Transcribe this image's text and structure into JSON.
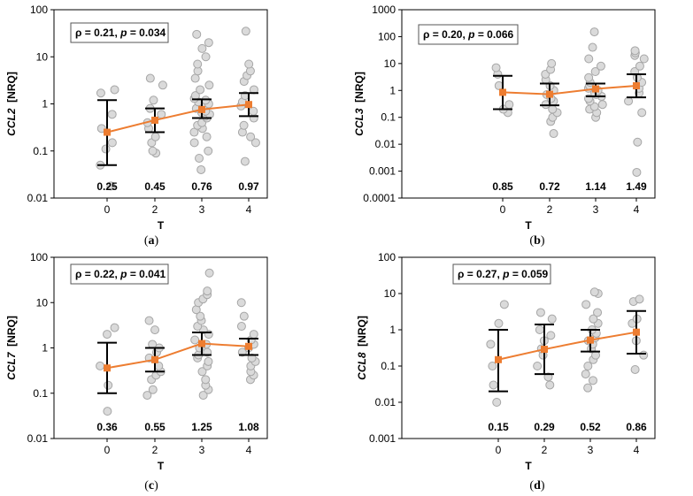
{
  "chart_data": [
    {
      "type": "scatter",
      "panel_label": "a",
      "ylabel_gene": "CCL2",
      "ylabel_unit": "[NRQ]",
      "xlabel": "T",
      "scale": "log",
      "ylim": [
        0.01,
        100
      ],
      "ytick_labels": [
        "0.01",
        "0.1",
        "1",
        "10",
        "100"
      ],
      "categories": [
        "0",
        "2",
        "3",
        "4"
      ],
      "stat_rho": "ρ = 0.21,",
      "stat_p": "p",
      "stat_pval": "= 0.034",
      "medians": [
        0.25,
        0.45,
        0.76,
        0.97
      ],
      "median_labels": [
        "0.25",
        "0.45",
        "0.76",
        "0.97"
      ],
      "error_low": [
        0.05,
        0.25,
        0.5,
        0.55
      ],
      "error_high": [
        1.2,
        0.8,
        1.25,
        1.7
      ],
      "points": [
        [
          0.018,
          0.05,
          0.11,
          0.15,
          0.3,
          0.6,
          1.7,
          2.0
        ],
        [
          0.09,
          0.1,
          0.15,
          0.2,
          0.3,
          0.4,
          0.6,
          0.8,
          1.2,
          2.5,
          3.5
        ],
        [
          0.04,
          0.07,
          0.1,
          0.15,
          0.2,
          0.25,
          0.3,
          0.35,
          0.4,
          0.5,
          0.55,
          0.6,
          0.65,
          0.7,
          0.8,
          0.9,
          1.0,
          1.1,
          1.2,
          1.3,
          1.5,
          2.0,
          2.5,
          3.5,
          5.0,
          7.0,
          10.0,
          15.0,
          20.0,
          30.0
        ],
        [
          0.06,
          0.15,
          0.2,
          0.25,
          0.35,
          0.5,
          0.7,
          0.9,
          1.1,
          1.5,
          2.0,
          3.0,
          4.0,
          5.0,
          7.0,
          35.0
        ]
      ]
    },
    {
      "type": "scatter",
      "panel_label": "b",
      "ylabel_gene": "CCL3",
      "ylabel_unit": "[NRQ]",
      "xlabel": "T",
      "scale": "log",
      "ylim": [
        0.0001,
        1000
      ],
      "ytick_labels": [
        "0.0001",
        "0.001",
        "0.01",
        "0.1",
        "1",
        "10",
        "100",
        "1000"
      ],
      "categories": [
        "0",
        "2",
        "3",
        "4"
      ],
      "stat_rho": "ρ = 0.20,",
      "stat_p": "p",
      "stat_pval": "= 0.066",
      "medians": [
        0.85,
        0.72,
        1.14,
        1.49
      ],
      "median_labels": [
        "0.85",
        "0.72",
        "1.14",
        "1.49"
      ],
      "error_low": [
        0.2,
        0.28,
        0.6,
        0.55
      ],
      "error_high": [
        3.5,
        1.8,
        1.8,
        4.0
      ],
      "points": [
        [
          0.15,
          0.2,
          0.3,
          1.5,
          4.0,
          7.0
        ],
        [
          0.025,
          0.07,
          0.1,
          0.15,
          0.2,
          0.3,
          0.4,
          0.5,
          0.7,
          1.0,
          1.5,
          2.5,
          4.0,
          6.0,
          10.0
        ],
        [
          0.1,
          0.15,
          0.2,
          0.25,
          0.3,
          0.4,
          0.5,
          0.6,
          0.7,
          0.8,
          1.0,
          1.2,
          1.5,
          2.0,
          3.0,
          5.0,
          8.0,
          15.0,
          40.0,
          150.0
        ],
        [
          0.0009,
          0.012,
          0.15,
          0.4,
          0.8,
          1.2,
          2.0,
          3.0,
          5.0,
          8.0,
          15.0,
          20.0,
          25.0,
          30.0
        ]
      ]
    },
    {
      "type": "scatter",
      "panel_label": "c",
      "ylabel_gene": "CCL7",
      "ylabel_unit": "[NRQ]",
      "xlabel": "T",
      "scale": "log",
      "ylim": [
        0.01,
        100
      ],
      "ytick_labels": [
        "0.01",
        "0.1",
        "1",
        "10",
        "100"
      ],
      "categories": [
        "0",
        "2",
        "3",
        "4"
      ],
      "stat_rho": "ρ = 0.22,",
      "stat_p": "p",
      "stat_pval": "= 0.041",
      "medians": [
        0.36,
        0.55,
        1.25,
        1.08
      ],
      "median_labels": [
        "0.36",
        "0.55",
        "1.25",
        "1.08"
      ],
      "error_low": [
        0.1,
        0.3,
        0.7,
        0.7
      ],
      "error_high": [
        1.3,
        1.0,
        2.2,
        1.6
      ],
      "points": [
        [
          0.04,
          0.15,
          0.4,
          2.0,
          2.8
        ],
        [
          0.09,
          0.12,
          0.2,
          0.25,
          0.3,
          0.4,
          0.6,
          0.8,
          1.0,
          1.2,
          2.5,
          4.0
        ],
        [
          0.09,
          0.12,
          0.15,
          0.2,
          0.3,
          0.4,
          0.5,
          0.6,
          0.7,
          0.8,
          1.0,
          1.2,
          1.5,
          2.0,
          2.5,
          3.0,
          4.0,
          5.0,
          7.0,
          10.0,
          12.0,
          15.0,
          18.0,
          45.0
        ],
        [
          0.2,
          0.25,
          0.3,
          0.4,
          0.5,
          0.6,
          0.8,
          1.0,
          1.2,
          1.5,
          2.0,
          3.0,
          5.0,
          10.0
        ]
      ]
    },
    {
      "type": "scatter",
      "panel_label": "d",
      "ylabel_gene": "CCL8",
      "ylabel_unit": "[NRQ]",
      "xlabel": "T",
      "scale": "log",
      "ylim": [
        0.001,
        100
      ],
      "ytick_labels": [
        "0.001",
        "0.01",
        "0.1",
        "1",
        "10",
        "100"
      ],
      "categories": [
        "0",
        "2",
        "3",
        "4"
      ],
      "stat_rho": "ρ = 0.27,",
      "stat_p": "p",
      "stat_pval": "= 0.059",
      "medians": [
        0.15,
        0.29,
        0.52,
        0.86
      ],
      "median_labels": [
        "0.15",
        "0.29",
        "0.52",
        "0.86"
      ],
      "error_low": [
        0.02,
        0.06,
        0.25,
        0.22
      ],
      "error_high": [
        1.0,
        1.4,
        1.0,
        3.3
      ],
      "points": [
        [
          0.01,
          0.03,
          0.1,
          0.4,
          1.5,
          5.0
        ],
        [
          0.03,
          0.05,
          0.1,
          0.2,
          0.3,
          0.5,
          0.7,
          1.0,
          2.0,
          3.0
        ],
        [
          0.025,
          0.04,
          0.06,
          0.1,
          0.15,
          0.2,
          0.3,
          0.4,
          0.5,
          0.6,
          0.8,
          1.0,
          1.5,
          2.0,
          3.0,
          5.0,
          10.0,
          11.0
        ],
        [
          0.08,
          0.2,
          0.5,
          1.5,
          2.0,
          6.0,
          7.0
        ]
      ]
    }
  ],
  "colors": {
    "trend": "#ED7D31",
    "point_fill": "#DADADA",
    "point_stroke": "#A6A6A6",
    "axis": "#000000"
  }
}
